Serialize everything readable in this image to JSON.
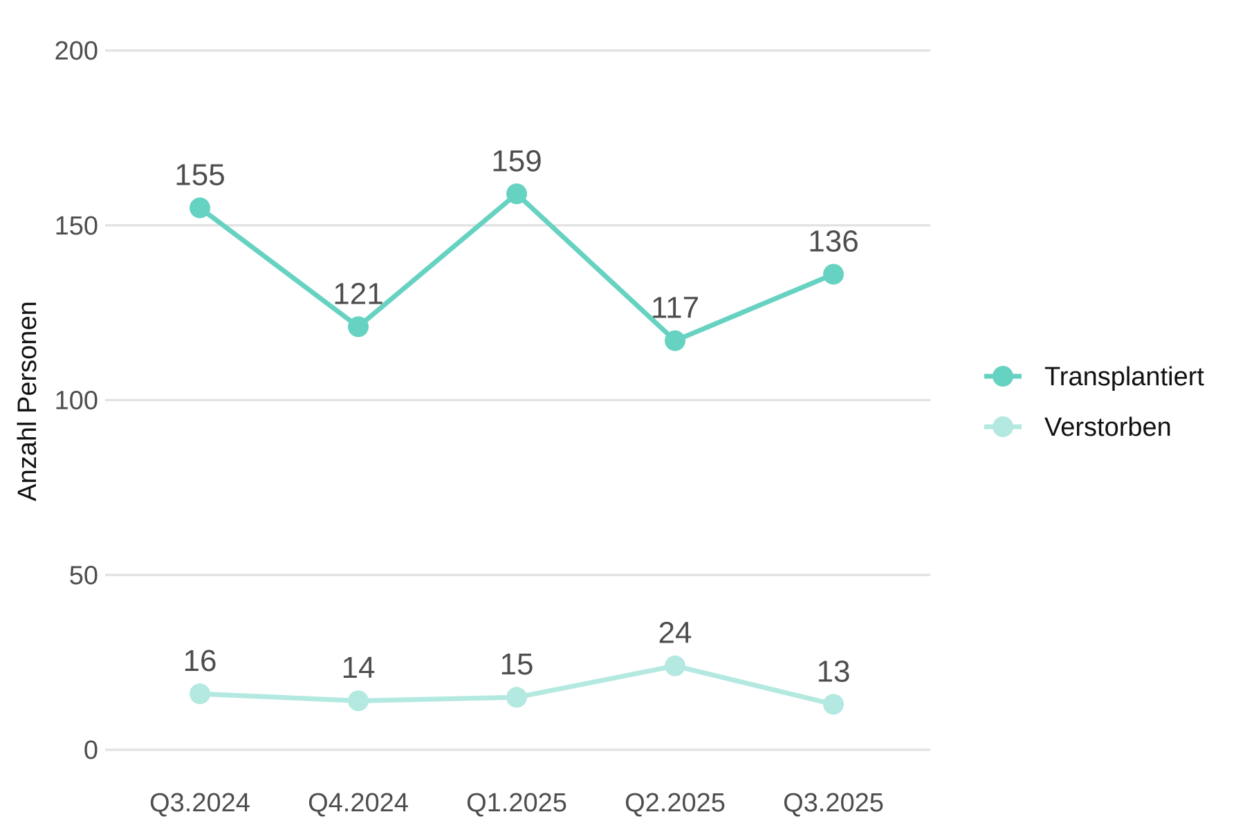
{
  "chart_data": {
    "type": "line",
    "title": "",
    "xlabel": "",
    "ylabel": "Anzahl Personen",
    "categories": [
      "Q3.2024",
      "Q4.2024",
      "Q1.2025",
      "Q2.2025",
      "Q3.2025"
    ],
    "ylim": [
      0,
      200
    ],
    "yticks": [
      0,
      50,
      100,
      150,
      200
    ],
    "grid": true,
    "legend_position": "right",
    "data_labels": true,
    "series": [
      {
        "name": "Transplantiert",
        "values": [
          155,
          121,
          159,
          117,
          136
        ],
        "color": "#66d2c1"
      },
      {
        "name": "Verstorben",
        "values": [
          16,
          14,
          15,
          24,
          13
        ],
        "color": "#b3e9e1"
      }
    ]
  }
}
